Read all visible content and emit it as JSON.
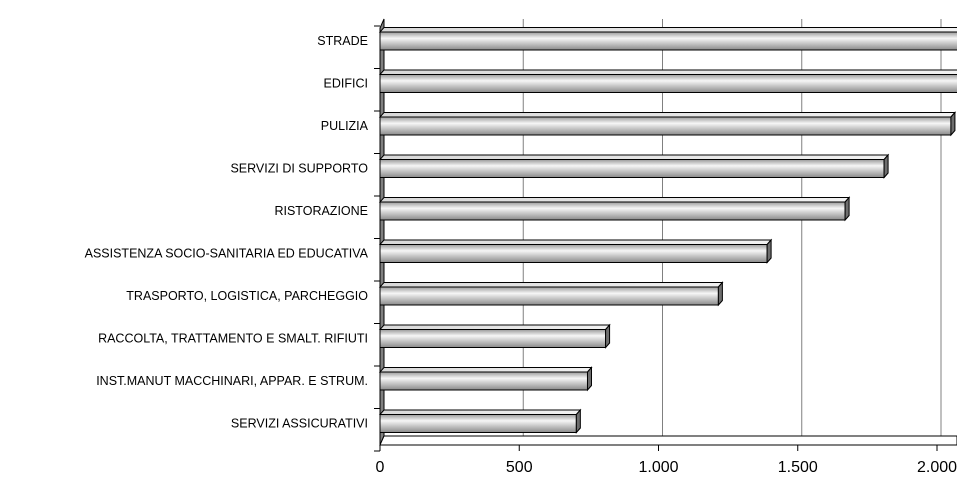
{
  "chart_data": {
    "type": "bar",
    "orientation": "horizontal",
    "style": "3d",
    "categories": [
      "STRADE",
      "EDIFICI",
      "PULIZIA",
      "SERVIZI DI SUPPORTO",
      "RISTORAZIONE",
      "ASSISTENZA SOCIO-SANITARIA ED EDUCATIVA",
      "TRASPORTO, LOGISTICA, PARCHEGGIO",
      "RACCOLTA, TRATTAMENTO E SMALT. RIFIUTI",
      "INST.MANUT MACCHINARI, APPAR. E STRUM.",
      "SERVIZI ASSICURATIVI"
    ],
    "values": [
      2100,
      2100,
      2050,
      1810,
      1670,
      1390,
      1215,
      810,
      745,
      705
    ],
    "xlim": [
      0,
      2100
    ],
    "xticks": [
      0,
      500,
      1000,
      1500,
      2000
    ],
    "xtick_labels": [
      "0",
      "500",
      "1.000",
      "1.500",
      "2.000"
    ],
    "title": "",
    "xlabel": "",
    "ylabel": "",
    "grid": "vertical",
    "legend": "none",
    "colors": {
      "bar_light": "#f4f4f4",
      "bar_dark": "#8c8c8c",
      "bar_side": "#6e6e6e",
      "wall": "#808080",
      "grid": "#808080",
      "outline": "#000000"
    }
  }
}
